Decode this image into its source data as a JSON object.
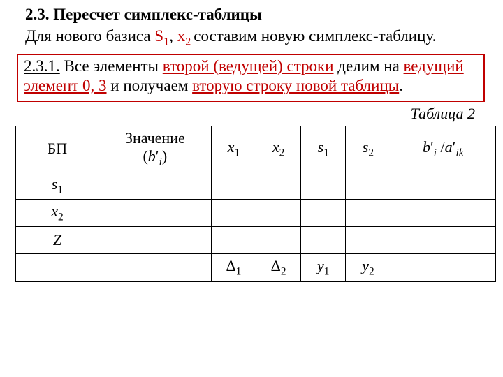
{
  "heading": "2.3. Пересчет симплекс-таблицы",
  "intro": {
    "prefix": "Для нового базиса ",
    "s1": "S",
    "s1_sub": "1",
    "comma": ", ",
    "x2": "x",
    "x2_sub": "2 ",
    "suffix": "составим новую симплекс-таблицу."
  },
  "box": {
    "sec": "2.3.1.",
    "t1": " Все элементы ",
    "k1": "второй (ведущей) строки",
    "t2": " делим на ",
    "k2": "ведущий элемент 0, 3",
    "t3": " и получаем ",
    "k3": "вторую строку новой таблицы",
    "dot": "."
  },
  "caption": "Таблица 2",
  "table": {
    "headers": {
      "bp": "БП",
      "value_line1": "Значение",
      "value_line2_open": "(",
      "value_line2_var": "b",
      "value_line2_prime": "ʹ",
      "value_line2_sub": "i",
      "value_line2_close": ")",
      "x1_v": "x",
      "x1_s": "1",
      "x2_v": "x",
      "x2_s": "2",
      "s1_v": "s",
      "s1_s": "1",
      "s2_v": "s",
      "s2_s": "2",
      "ratio_b": "b",
      "ratio_bprime": "ʹ",
      "ratio_bsub": "i",
      "ratio_slash": " /",
      "ratio_a": "a",
      "ratio_aprime": "ʹ",
      "ratio_asub": "ik"
    },
    "rows": {
      "r1": {
        "label_v": "s",
        "label_s": "1"
      },
      "r2": {
        "label_v": "x",
        "label_s": "2"
      },
      "r3": {
        "label": "Z"
      }
    },
    "footer": {
      "d1_v": "Δ",
      "d1_s": "1",
      "d2_v": "Δ",
      "d2_s": "2",
      "y1_v": "y",
      "y1_s": "1",
      "y2_v": "y",
      "y2_s": "2"
    }
  },
  "colors": {
    "accent": "#c00000",
    "border": "#000000",
    "bg": "#ffffff",
    "text": "#000000"
  },
  "fonts": {
    "family": "Times New Roman",
    "body_size_pt": 17,
    "heading_weight": "bold"
  }
}
